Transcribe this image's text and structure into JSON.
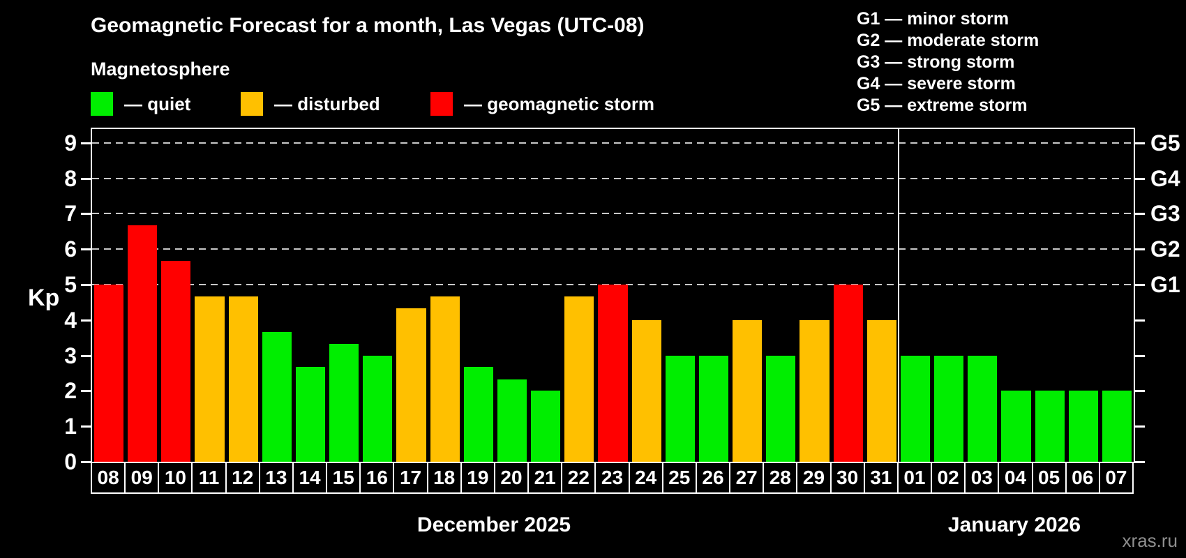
{
  "header": {
    "title": "Geomagnetic Forecast for a month, Las Vegas (UTC-08)",
    "subtitle": "Magnetosphere",
    "legend": [
      {
        "key": "quiet",
        "label": "— quiet",
        "color": "#00ee00"
      },
      {
        "key": "disturbed",
        "label": "— disturbed",
        "color": "#ffc000"
      },
      {
        "key": "storm",
        "label": "— geomagnetic storm",
        "color": "#ff0000"
      }
    ]
  },
  "storm_scale": [
    {
      "text": "G1 — minor storm"
    },
    {
      "text": "G2 — moderate storm"
    },
    {
      "text": "G3 — strong storm"
    },
    {
      "text": "G4 — severe storm"
    },
    {
      "text": "G5 — extreme storm"
    }
  ],
  "chart_data": {
    "type": "bar",
    "title": "Geomagnetic Forecast for a month, Las Vegas (UTC-08)",
    "ylabel": "Kp",
    "ylim": [
      0,
      9.4
    ],
    "yticks": [
      0,
      1,
      2,
      3,
      4,
      5,
      6,
      7,
      8,
      9
    ],
    "gridlines_at_kp": [
      5,
      6,
      7,
      8,
      9
    ],
    "grid_style": "dashed",
    "grid_color": "#c8c8c8",
    "right_axis": [
      {
        "kp": 5,
        "label": "G1"
      },
      {
        "kp": 6,
        "label": "G2"
      },
      {
        "kp": 7,
        "label": "G3"
      },
      {
        "kp": 8,
        "label": "G4"
      },
      {
        "kp": 9,
        "label": "G5"
      }
    ],
    "colors": {
      "quiet": "#00ee00",
      "disturbed": "#ffc000",
      "storm": "#ff0000"
    },
    "months": [
      {
        "label": "December 2025",
        "start_index": 0,
        "count": 24
      },
      {
        "label": "January 2026",
        "start_index": 24,
        "count": 7
      }
    ],
    "bars": [
      {
        "day": "08",
        "kp": 5.0,
        "state": "storm"
      },
      {
        "day": "09",
        "kp": 6.67,
        "state": "storm"
      },
      {
        "day": "10",
        "kp": 5.67,
        "state": "storm"
      },
      {
        "day": "11",
        "kp": 4.67,
        "state": "disturbed"
      },
      {
        "day": "12",
        "kp": 4.67,
        "state": "disturbed"
      },
      {
        "day": "13",
        "kp": 3.67,
        "state": "quiet"
      },
      {
        "day": "14",
        "kp": 2.67,
        "state": "quiet"
      },
      {
        "day": "15",
        "kp": 3.33,
        "state": "quiet"
      },
      {
        "day": "16",
        "kp": 3.0,
        "state": "quiet"
      },
      {
        "day": "17",
        "kp": 4.33,
        "state": "disturbed"
      },
      {
        "day": "18",
        "kp": 4.67,
        "state": "disturbed"
      },
      {
        "day": "19",
        "kp": 2.67,
        "state": "quiet"
      },
      {
        "day": "20",
        "kp": 2.33,
        "state": "quiet"
      },
      {
        "day": "21",
        "kp": 2.0,
        "state": "quiet"
      },
      {
        "day": "22",
        "kp": 4.67,
        "state": "disturbed"
      },
      {
        "day": "23",
        "kp": 5.0,
        "state": "storm"
      },
      {
        "day": "24",
        "kp": 4.0,
        "state": "disturbed"
      },
      {
        "day": "25",
        "kp": 3.0,
        "state": "quiet"
      },
      {
        "day": "26",
        "kp": 3.0,
        "state": "quiet"
      },
      {
        "day": "27",
        "kp": 4.0,
        "state": "disturbed"
      },
      {
        "day": "28",
        "kp": 3.0,
        "state": "quiet"
      },
      {
        "day": "29",
        "kp": 4.0,
        "state": "disturbed"
      },
      {
        "day": "30",
        "kp": 5.0,
        "state": "storm"
      },
      {
        "day": "31",
        "kp": 4.0,
        "state": "disturbed"
      },
      {
        "day": "01",
        "kp": 3.0,
        "state": "quiet"
      },
      {
        "day": "02",
        "kp": 3.0,
        "state": "quiet"
      },
      {
        "day": "03",
        "kp": 3.0,
        "state": "quiet"
      },
      {
        "day": "04",
        "kp": 2.0,
        "state": "quiet"
      },
      {
        "day": "05",
        "kp": 2.0,
        "state": "quiet"
      },
      {
        "day": "06",
        "kp": 2.0,
        "state": "quiet"
      },
      {
        "day": "07",
        "kp": 2.0,
        "state": "quiet"
      }
    ]
  },
  "watermark": "xras.ru"
}
